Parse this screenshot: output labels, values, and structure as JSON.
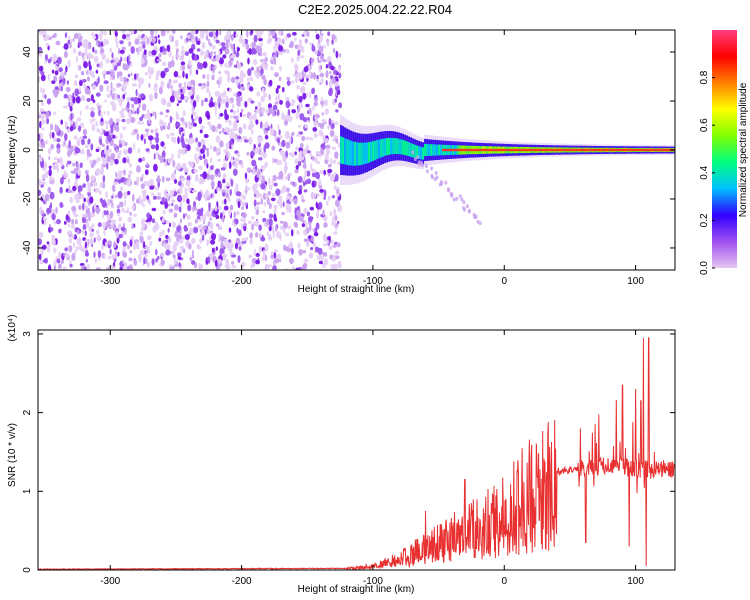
{
  "title": "C2E2.2025.004.22.22.R04",
  "colors": {
    "snr_line": "#e83030",
    "frame": "#000000",
    "scatter": "#8a2be2",
    "colorbar_stops": [
      "#e6c6f0",
      "#a050f0",
      "#3000ff",
      "#00c0ff",
      "#00ff80",
      "#80ff00",
      "#ffff00",
      "#ff8000",
      "#ff0000",
      "#ff4080"
    ]
  },
  "chart_data": [
    {
      "type": "heatmap",
      "title": "",
      "xlabel": "Height of straight line (km)",
      "ylabel": "Frequency (Hz)",
      "xlim": [
        -355,
        130
      ],
      "ylim": [
        -49,
        49
      ],
      "x_ticks": [
        -300,
        -200,
        -100,
        0,
        100
      ],
      "x_tick_labels": [
        "-300",
        "-200",
        "-100",
        "0",
        "100"
      ],
      "y_ticks": [
        -40,
        -20,
        0,
        20,
        40
      ],
      "y_tick_labels": [
        "-40",
        "-20",
        "0",
        "20",
        "40"
      ],
      "noise_region_x": [
        -355,
        -125
      ],
      "signal_start_x": -125,
      "colorbar": {
        "label": "Normalized spectral amplitude",
        "range": [
          0,
          1
        ],
        "ticks": [
          0.0,
          0.2,
          0.4,
          0.6,
          0.8
        ],
        "tick_labels": [
          "0.0",
          "0.2",
          "0.4",
          "0.6",
          "0.8"
        ]
      }
    },
    {
      "type": "line",
      "title": "",
      "xlabel": "Height of straight line (km)",
      "ylabel": "SNR (10 * v/v)",
      "y_scale_label": "(x10⁴)",
      "xlim": [
        -355,
        130
      ],
      "ylim": [
        0,
        3.05
      ],
      "x_ticks": [
        -300,
        -200,
        -100,
        0,
        100
      ],
      "x_tick_labels": [
        "-300",
        "-200",
        "-100",
        "0",
        "100"
      ],
      "y_ticks": [
        0,
        1,
        2,
        3
      ],
      "y_tick_labels": [
        "0",
        "1",
        "2",
        "3"
      ],
      "envelope_x": [
        -355,
        -120,
        -100,
        -80,
        -60,
        -40,
        -20,
        0,
        20,
        40,
        60,
        80,
        100,
        110,
        130
      ],
      "envelope_y": [
        0.01,
        0.02,
        0.05,
        0.15,
        0.3,
        0.45,
        0.6,
        0.8,
        1.05,
        1.25,
        1.3,
        1.33,
        1.3,
        1.28,
        1.28
      ],
      "spikes": [
        {
          "x": -60,
          "y": 0.75
        },
        {
          "x": -30,
          "y": 1.15
        },
        {
          "x": -25,
          "y": 0.85
        },
        {
          "x": -10,
          "y": 0.85
        },
        {
          "x": 58,
          "y": 1.8
        },
        {
          "x": 62,
          "y": 0.35
        },
        {
          "x": 90,
          "y": 2.35
        },
        {
          "x": 95,
          "y": 0.3
        },
        {
          "x": 100,
          "y": 2.3
        },
        {
          "x": 104,
          "y": 2.15
        },
        {
          "x": 106,
          "y": 2.95
        },
        {
          "x": 108,
          "y": 0.05
        },
        {
          "x": 110,
          "y": 2.95
        }
      ]
    }
  ]
}
